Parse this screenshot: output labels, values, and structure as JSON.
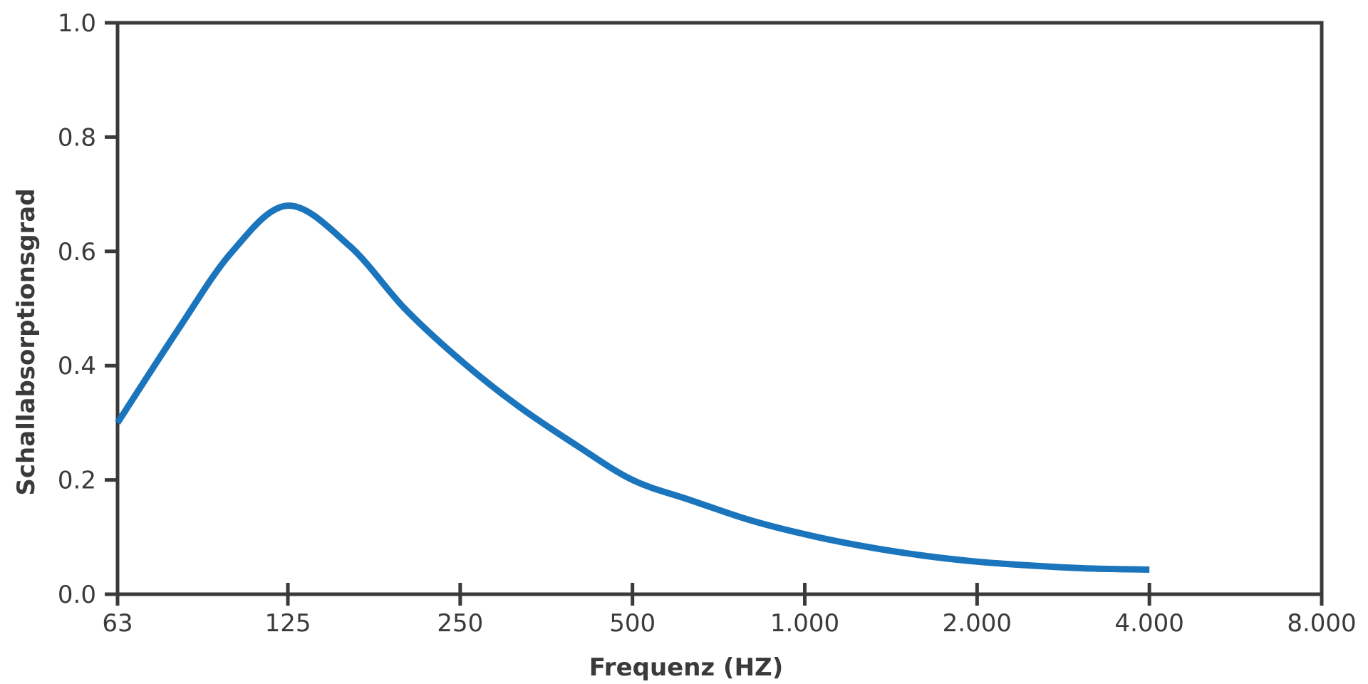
{
  "chart_data": {
    "type": "line",
    "xlabel": "Frequenz (HZ)",
    "ylabel": "Schallabsorptionsgrad",
    "x_scale": "log2",
    "x_ticks": [
      63,
      125,
      250,
      500,
      1000,
      2000,
      4000,
      8000
    ],
    "x_tick_labels": [
      "63",
      "125",
      "250",
      "500",
      "1.000",
      "2.000",
      "4.000",
      "8.000"
    ],
    "xlim": [
      63,
      8000
    ],
    "ylim": [
      0,
      1.0
    ],
    "y_ticks": [
      0.0,
      0.2,
      0.4,
      0.6,
      0.8,
      1.0
    ],
    "y_tick_labels": [
      "0.0",
      "0.2",
      "0.4",
      "0.6",
      "0.8",
      "1.0"
    ],
    "grid": false,
    "series": [
      {
        "color": "#1b75bc",
        "x": [
          63,
          80,
          100,
          125,
          160,
          200,
          250,
          315,
          400,
          500,
          630,
          800,
          1000,
          1250,
          1600,
          2000,
          2500,
          3150,
          4000
        ],
        "y": [
          0.3,
          0.46,
          0.6,
          0.68,
          0.61,
          0.5,
          0.41,
          0.33,
          0.26,
          0.2,
          0.165,
          0.13,
          0.105,
          0.085,
          0.068,
          0.057,
          0.05,
          0.045,
          0.043
        ]
      }
    ]
  }
}
